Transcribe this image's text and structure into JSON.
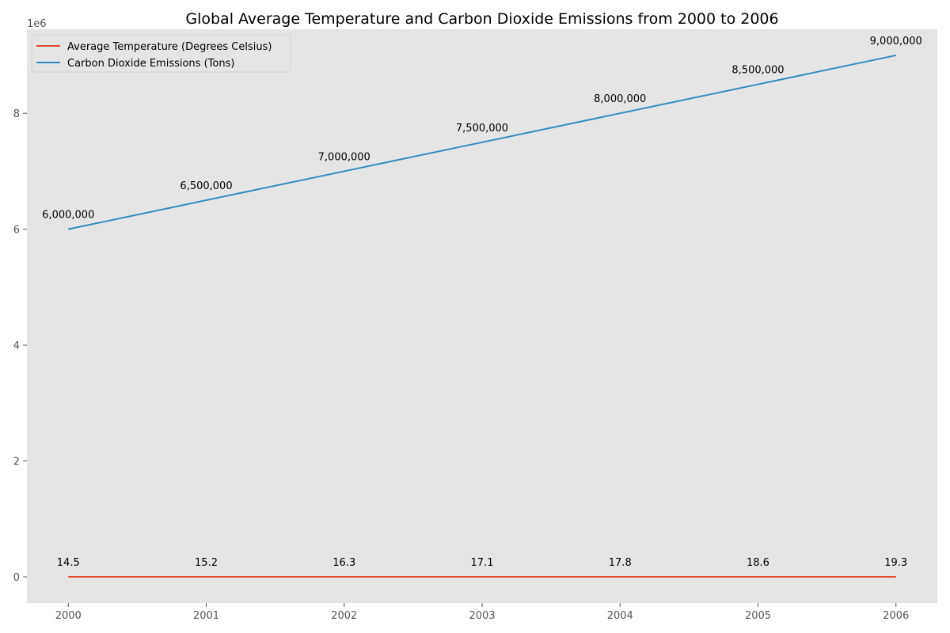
{
  "chart_data": {
    "type": "line",
    "title": "Global Average Temperature and Carbon Dioxide Emissions from 2000 to 2006",
    "xlabel": "",
    "ylabel": "",
    "x": [
      2000,
      2001,
      2002,
      2003,
      2004,
      2005,
      2006
    ],
    "x_tick_labels": [
      "2000",
      "2001",
      "2002",
      "2003",
      "2004",
      "2005",
      "2006"
    ],
    "y_tick_values": [
      0,
      2000000,
      4000000,
      6000000,
      8000000
    ],
    "y_tick_labels": [
      "0",
      "2",
      "4",
      "6",
      "8"
    ],
    "y_offset_label": "1e6",
    "ylim": [
      -450000,
      9450000
    ],
    "xlim": [
      1999.7,
      2006.3
    ],
    "grid": false,
    "legend_position": "top-left",
    "background_color": "#e5e5e5",
    "series": [
      {
        "name": "Average Temperature (Degrees Celsius)",
        "color": "#e24a33",
        "values": [
          14.5,
          15.2,
          16.3,
          17.1,
          17.8,
          18.6,
          19.3
        ],
        "labels": [
          "14.5",
          "15.2",
          "16.3",
          "17.1",
          "17.8",
          "18.6",
          "19.3"
        ]
      },
      {
        "name": "Carbon Dioxide Emissions (Tons)",
        "color": "#348abd",
        "values": [
          6000000,
          6500000,
          7000000,
          7500000,
          8000000,
          8500000,
          9000000
        ],
        "labels": [
          "6,000,000",
          "6,500,000",
          "7,000,000",
          "7,500,000",
          "8,000,000",
          "8,500,000",
          "9,000,000"
        ]
      }
    ]
  }
}
